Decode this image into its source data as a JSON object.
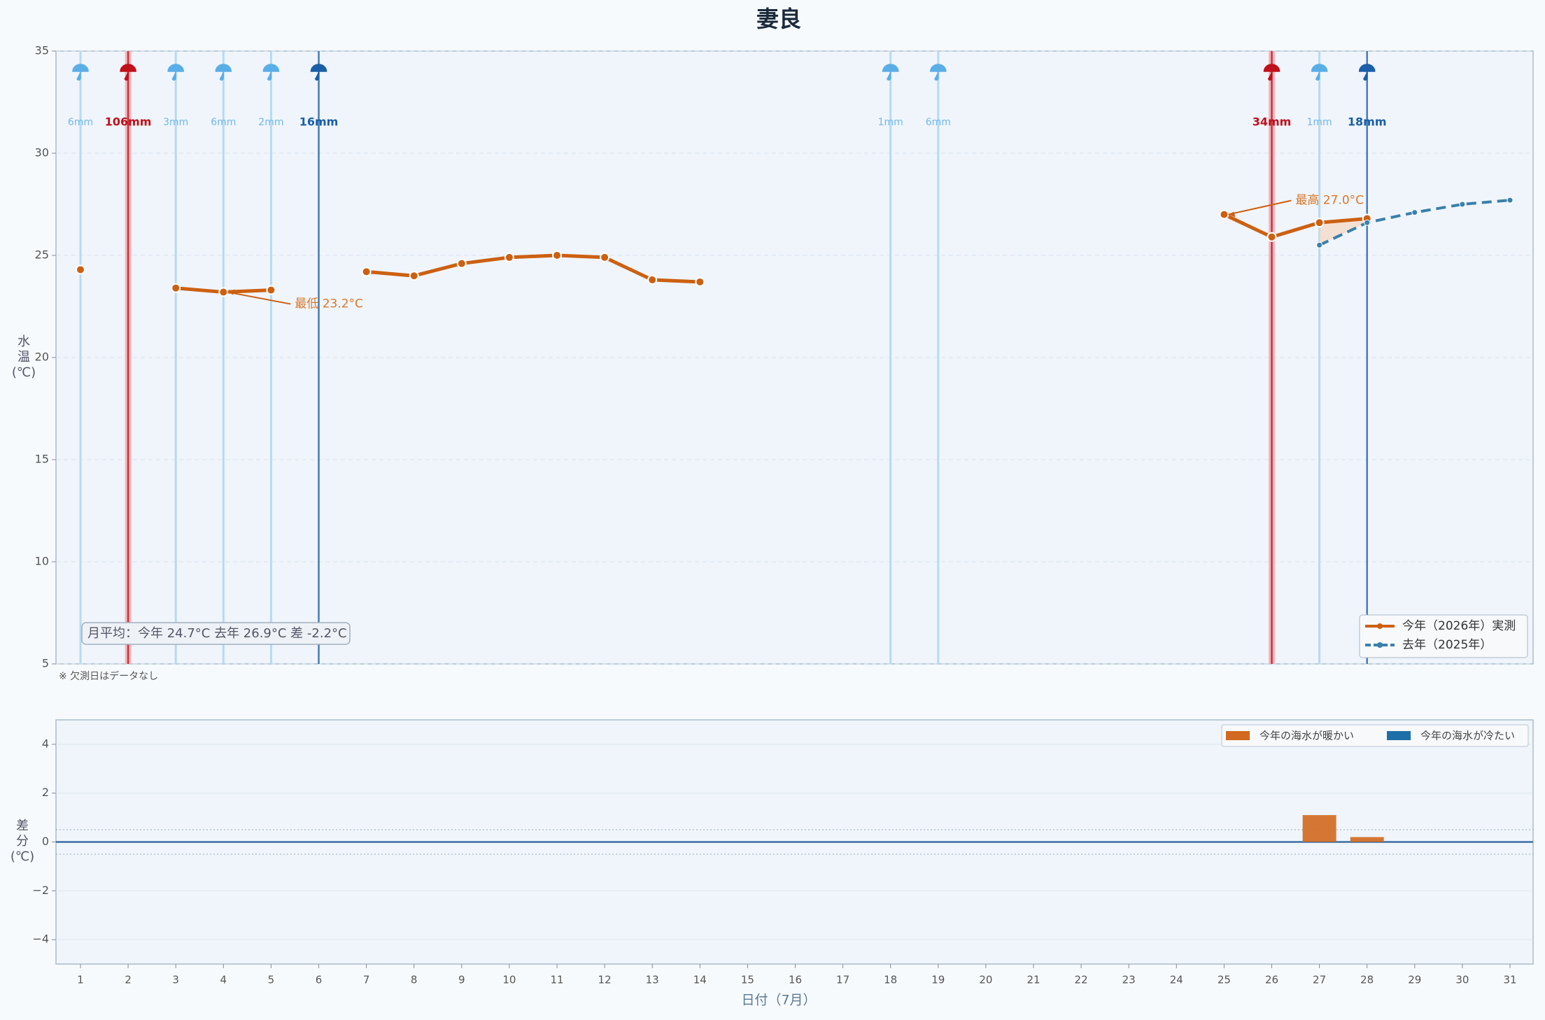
{
  "chart_data": [
    {
      "type": "line",
      "title": "妻良",
      "ylabel": "水温(℃)",
      "ylim": [
        5,
        35
      ],
      "yticks": [
        5,
        10,
        15,
        20,
        25,
        30,
        35
      ],
      "grid": true,
      "legend": "lower right",
      "series": [
        {
          "name": "今年（2026年）実測",
          "color": "#cc6011",
          "values": [
            24.3,
            null,
            23.4,
            23.2,
            23.3,
            null,
            24.2,
            24.0,
            24.6,
            24.9,
            25.0,
            24.9,
            23.8,
            23.7,
            null,
            null,
            null,
            null,
            null,
            null,
            null,
            null,
            null,
            null,
            27.0,
            25.9,
            26.6,
            26.8,
            null,
            null,
            null
          ]
        },
        {
          "name": "去年（2025年）",
          "color": "#3a80aa",
          "dashed": true,
          "values": [
            null,
            null,
            null,
            null,
            null,
            null,
            null,
            null,
            null,
            null,
            null,
            null,
            null,
            null,
            null,
            null,
            null,
            null,
            null,
            null,
            null,
            null,
            null,
            null,
            null,
            null,
            25.5,
            26.6,
            27.1,
            27.5,
            27.7
          ]
        }
      ],
      "rain": {
        "values": [
          6,
          106,
          3,
          6,
          2,
          16,
          null,
          null,
          null,
          null,
          null,
          null,
          null,
          null,
          null,
          null,
          null,
          1,
          6,
          null,
          null,
          null,
          null,
          null,
          null,
          34,
          1,
          18,
          null,
          null,
          null
        ],
        "value_labels": [
          "6mm",
          "106mm",
          "3mm",
          "6mm",
          "2mm",
          "16mm",
          null,
          null,
          null,
          null,
          null,
          null,
          null,
          null,
          null,
          null,
          null,
          "1mm",
          "6mm",
          null,
          null,
          null,
          null,
          null,
          null,
          "34mm",
          "1mm",
          "18mm",
          null,
          null,
          null
        ],
        "colors": [
          "#5aaee8",
          "#c0101a",
          "#5aaee8",
          "#5aaee8",
          "#5aaee8",
          "#1a5fa8",
          null,
          null,
          null,
          null,
          null,
          null,
          null,
          null,
          null,
          null,
          null,
          "#5aaee8",
          "#5aaee8",
          null,
          null,
          null,
          null,
          null,
          null,
          "#c0101a",
          "#5aaee8",
          "#1a5fa8",
          null,
          null,
          null
        ]
      },
      "annotations": [
        {
          "text": "最低 23.2°C",
          "day_index": 3
        },
        {
          "text": "最高 27.0°C",
          "day_index": 24
        }
      ],
      "summary": "月平均：今年 24.7°C  去年 26.9°C  差 -2.2°C",
      "note": "※ 欠測日はデータなし"
    },
    {
      "type": "bar",
      "ylabel": "差分(℃)",
      "xlabel": "日付（7月）",
      "ylim": [
        -5,
        5
      ],
      "yticks": [
        {
          "value": -4,
          "label": "−4"
        },
        {
          "value": -2,
          "label": "−2"
        },
        0,
        2,
        4
      ],
      "band": [
        -0.5,
        0.5
      ],
      "legend": "upper right",
      "categories": [
        "1",
        "2",
        "3",
        "4",
        "5",
        "6",
        "7",
        "8",
        "9",
        "10",
        "11",
        "12",
        "13",
        "14",
        "15",
        "16",
        "17",
        "18",
        "19",
        "20",
        "21",
        "22",
        "23",
        "24",
        "25",
        "26",
        "27",
        "28",
        "29",
        "30",
        "31"
      ],
      "series": [
        {
          "name": "今年の海水が暖かい",
          "color": "#d2691e",
          "values": [
            null,
            null,
            null,
            null,
            null,
            null,
            null,
            null,
            null,
            null,
            null,
            null,
            null,
            null,
            null,
            null,
            null,
            null,
            null,
            null,
            null,
            null,
            null,
            null,
            null,
            null,
            1.1,
            0.2,
            null,
            null,
            null
          ]
        },
        {
          "name": "今年の海水が冷たい",
          "color": "#1f6fa8",
          "values": [
            null,
            null,
            null,
            null,
            null,
            null,
            null,
            null,
            null,
            null,
            null,
            null,
            null,
            null,
            null,
            null,
            null,
            null,
            null,
            null,
            null,
            null,
            null,
            null,
            null,
            null,
            null,
            null,
            null,
            null,
            null
          ]
        }
      ]
    }
  ]
}
